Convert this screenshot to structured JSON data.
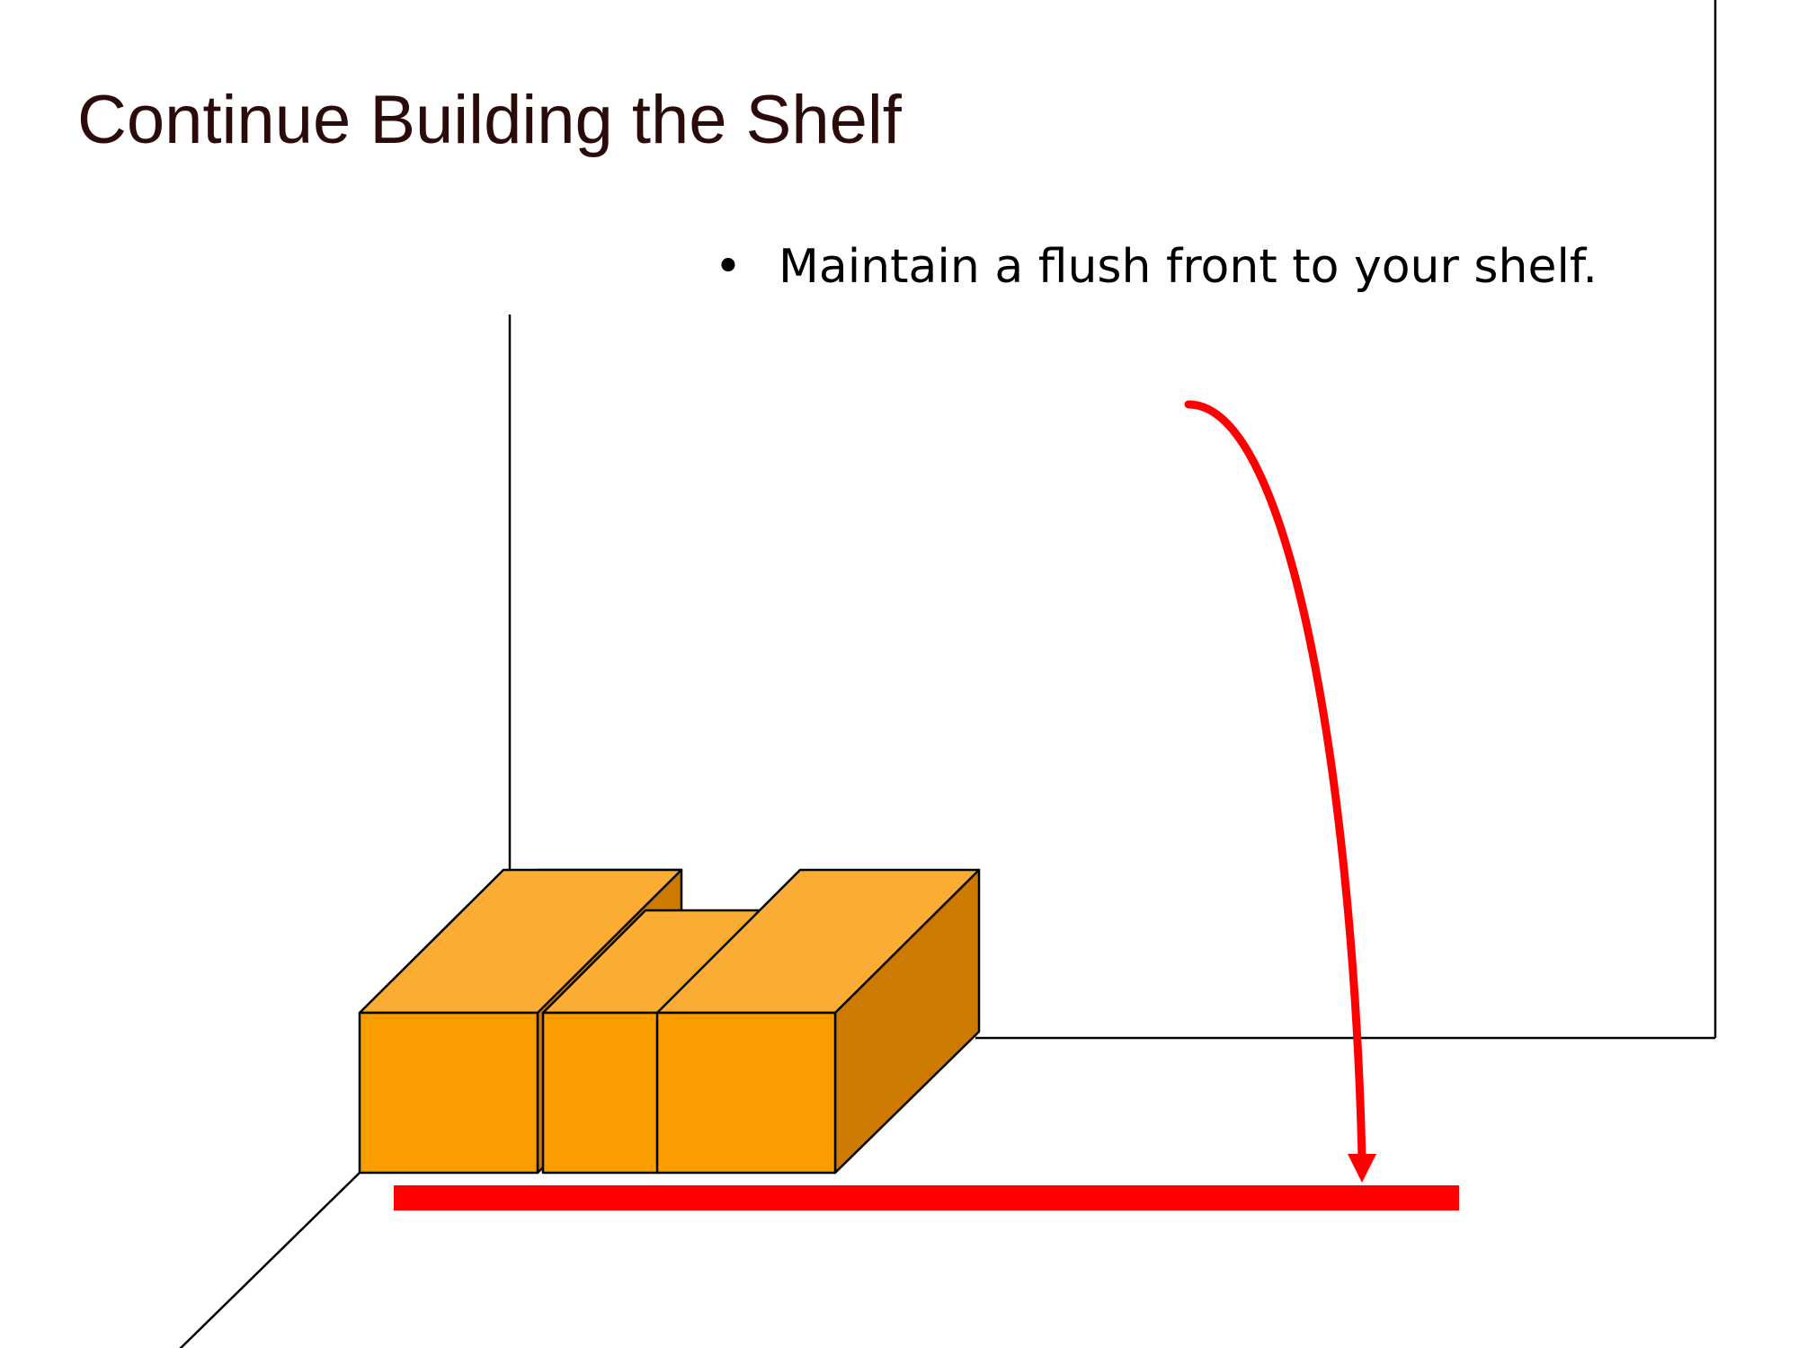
{
  "slide": {
    "title": "Continue Building the Shelf",
    "bullets": [
      {
        "marker": "•",
        "text": "Maintain a flush front to your shelf."
      }
    ]
  },
  "colors": {
    "title_text": "#2b0a0a",
    "box_front": "#fa9d00",
    "box_top": "#fbad33",
    "box_side": "#cc7a00",
    "indicator": "#ff0000",
    "outline": "#000000"
  },
  "icons": {
    "arrow": "curved-down-arrow-icon"
  }
}
